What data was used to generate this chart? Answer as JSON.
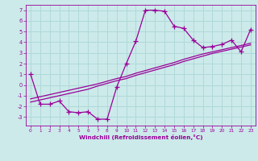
{
  "xlabel": "Windchill (Refroidissement éolien,°C)",
  "x_values": [
    0,
    1,
    2,
    3,
    4,
    5,
    6,
    7,
    8,
    9,
    10,
    11,
    12,
    13,
    14,
    15,
    16,
    17,
    18,
    19,
    20,
    21,
    22,
    23
  ],
  "y_main": [
    1,
    -1.8,
    -1.8,
    -1.5,
    -2.5,
    -2.6,
    -2.5,
    -3.2,
    -3.2,
    -0.2,
    2.0,
    4.1,
    7.0,
    7.0,
    6.9,
    5.5,
    5.3,
    4.2,
    3.5,
    3.6,
    3.8,
    4.2,
    3.1,
    5.2
  ],
  "y_line1": [
    -1.6,
    -1.4,
    -1.2,
    -1.0,
    -0.8,
    -0.6,
    -0.4,
    -0.1,
    0.15,
    0.4,
    0.6,
    0.9,
    1.15,
    1.4,
    1.65,
    1.9,
    2.2,
    2.45,
    2.7,
    2.95,
    3.15,
    3.35,
    3.55,
    3.75
  ],
  "y_line2": [
    -1.3,
    -1.1,
    -0.9,
    -0.7,
    -0.5,
    -0.3,
    -0.1,
    0.1,
    0.35,
    0.6,
    0.8,
    1.1,
    1.35,
    1.6,
    1.85,
    2.1,
    2.4,
    2.65,
    2.9,
    3.1,
    3.3,
    3.5,
    3.7,
    3.9
  ],
  "line_color": "#990099",
  "bg_color": "#cceaea",
  "grid_color": "#b0d8d8",
  "ylim": [
    -3.8,
    7.5
  ],
  "xlim": [
    -0.5,
    23.5
  ],
  "yticks": [
    -3,
    -2,
    -1,
    0,
    1,
    2,
    3,
    4,
    5,
    6,
    7
  ],
  "xticks": [
    0,
    1,
    2,
    3,
    4,
    5,
    6,
    7,
    8,
    9,
    10,
    11,
    12,
    13,
    14,
    15,
    16,
    17,
    18,
    19,
    20,
    21,
    22,
    23
  ],
  "marker": "+",
  "markersize": 4,
  "linewidth": 0.9
}
